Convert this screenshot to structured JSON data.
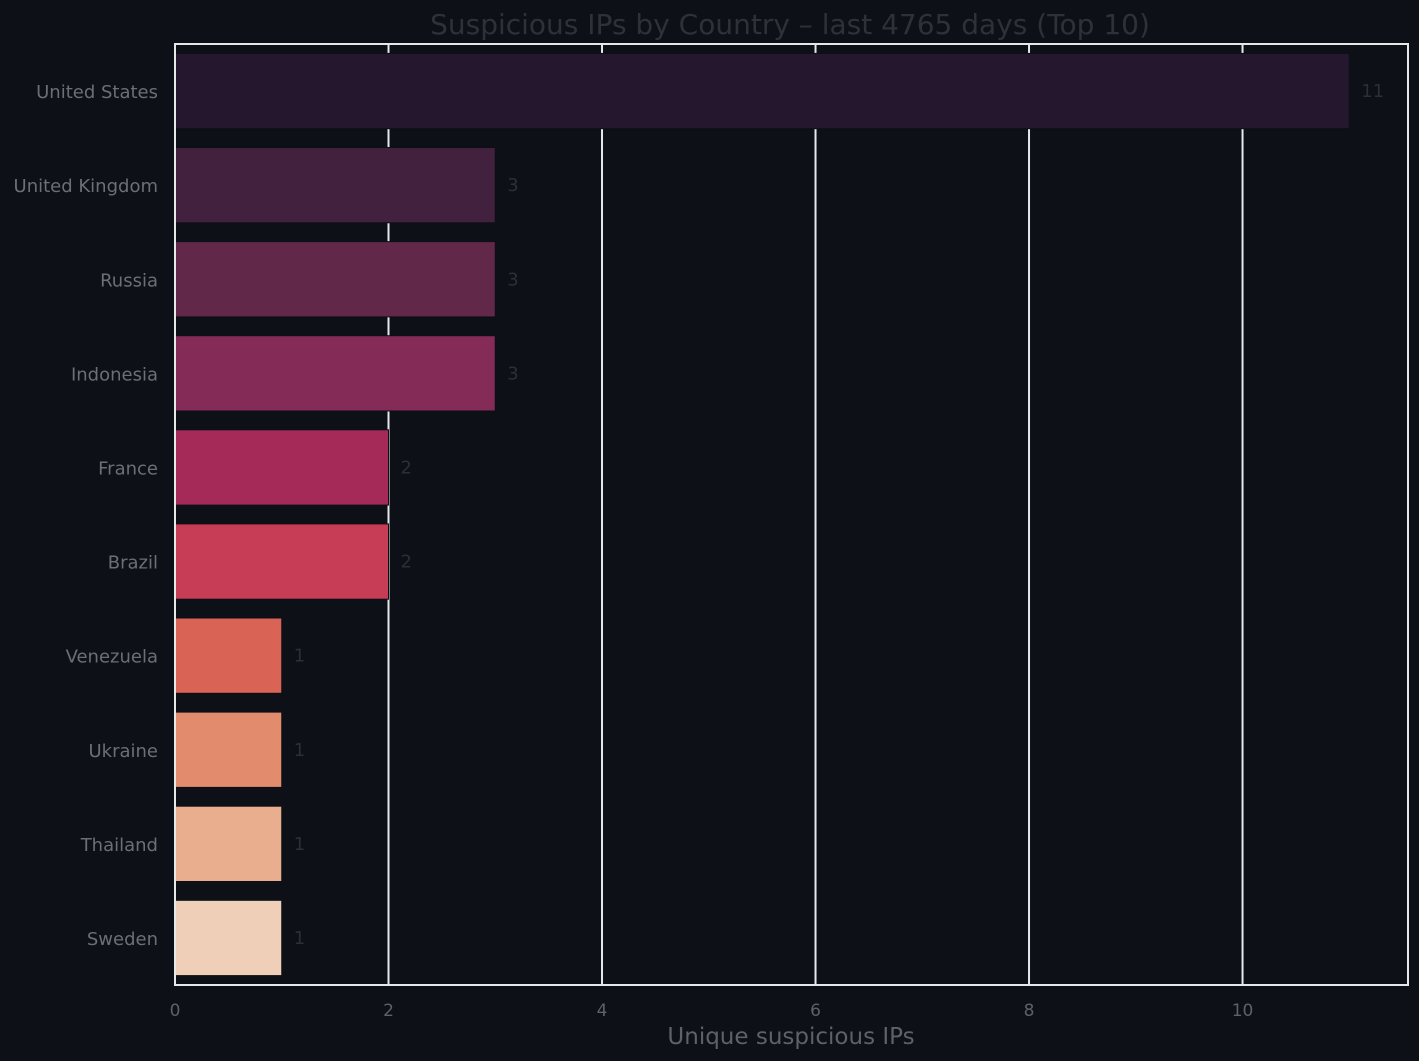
{
  "chart_data": {
    "type": "bar",
    "orientation": "horizontal",
    "title": "Suspicious IPs by Country – last 4765 days (Top 10)",
    "xlabel": "Unique suspicious IPs",
    "ylabel": "",
    "xlim": [
      0,
      11.55
    ],
    "xticks": [
      0,
      2,
      4,
      6,
      8,
      10
    ],
    "grid": "vertical",
    "categories": [
      "United States",
      "United Kingdom",
      "Russia",
      "Indonesia",
      "France",
      "Brazil",
      "Venezuela",
      "Ukraine",
      "Thailand",
      "Sweden"
    ],
    "values": [
      11,
      3,
      3,
      3,
      2,
      2,
      1,
      1,
      1,
      1
    ],
    "value_labels": [
      "11",
      "3",
      "3",
      "3",
      "2",
      "2",
      "1",
      "1",
      "1",
      "1"
    ],
    "colors": [
      "#25172e",
      "#42213f",
      "#612849",
      "#842b57",
      "#a52a58",
      "#c73d55",
      "#d96455",
      "#e38b6d",
      "#e9ae8d",
      "#f0cfb8"
    ]
  }
}
